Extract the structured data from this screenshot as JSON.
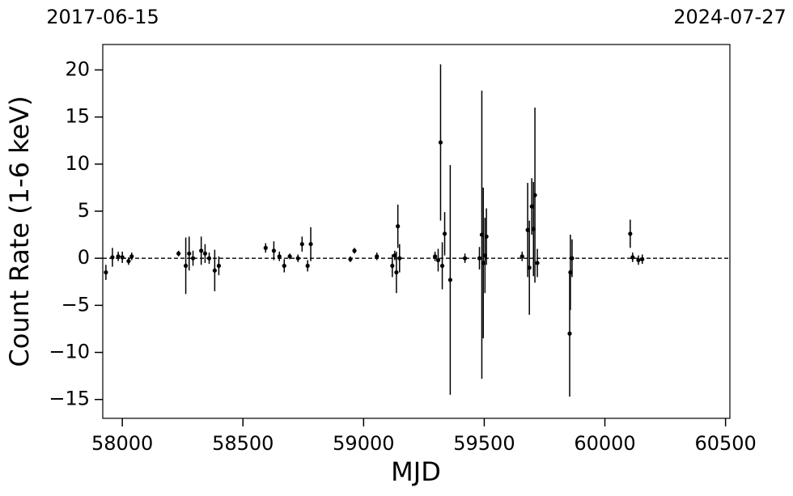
{
  "chart_data": {
    "type": "errorbar",
    "xlabel": "MJD",
    "ylabel": "Count Rate (1-6 keV)",
    "xlim": [
      57919,
      60518
    ],
    "ylim": [
      -17,
      22.7
    ],
    "xticks": [
      58000,
      58500,
      59000,
      59500,
      60000,
      60500
    ],
    "yticks": [
      {
        "value": -15,
        "label": "−15"
      },
      {
        "value": -10,
        "label": "−10"
      },
      {
        "value": -5,
        "label": "−5"
      },
      0,
      5,
      10,
      15,
      20
    ],
    "top_ticks": [
      {
        "value": 57919,
        "label": "2017-06-15"
      },
      {
        "value": 60518,
        "label": "2024-07-27"
      }
    ],
    "hline": 0,
    "color": "#000000",
    "x": [
      57932,
      57959,
      57983,
      58000,
      58026,
      58039,
      58233,
      58263,
      58277,
      58293,
      58327,
      58343,
      58360,
      58383,
      58400,
      58594,
      58628,
      58651,
      58671,
      58694,
      58728,
      58745,
      58768,
      58781,
      58945,
      58962,
      59055,
      59119,
      59129,
      59136,
      59142,
      59149,
      59296,
      59309,
      59319,
      59326,
      59336,
      59359,
      59420,
      59480,
      59490,
      59496,
      59503,
      59509,
      59657,
      59680,
      59687,
      59697,
      59704,
      59710,
      59720,
      59854,
      59857,
      59864,
      60105,
      60115,
      60139,
      60155
    ],
    "values": [
      -1.5,
      0.1,
      0.2,
      0.1,
      -0.3,
      0.2,
      0.5,
      -0.8,
      0.5,
      0.0,
      0.8,
      0.5,
      0.0,
      -1.3,
      -0.8,
      1.1,
      0.8,
      0.2,
      -0.8,
      0.2,
      0.0,
      1.5,
      -0.8,
      1.5,
      -0.1,
      0.8,
      0.2,
      -0.8,
      0.3,
      -1.5,
      3.4,
      0.0,
      0.2,
      -0.2,
      12.3,
      -0.8,
      2.6,
      -2.3,
      0.0,
      0.0,
      2.5,
      -0.5,
      0.3,
      2.3,
      0.2,
      3.0,
      -1.0,
      5.5,
      3.1,
      6.7,
      -0.5,
      -8.0,
      -1.5,
      0.0,
      2.6,
      0.1,
      -0.2,
      -0.1
    ],
    "errors": [
      0.8,
      1.0,
      0.5,
      0.6,
      0.4,
      0.4,
      0.3,
      3.0,
      1.8,
      0.8,
      1.5,
      1.0,
      0.6,
      2.2,
      1.0,
      0.5,
      1.0,
      0.5,
      0.7,
      0.3,
      0.4,
      0.8,
      0.6,
      1.8,
      0.3,
      0.3,
      0.4,
      1.2,
      0.5,
      2.2,
      2.3,
      1.5,
      0.5,
      1.2,
      8.3,
      2.5,
      2.3,
      12.2,
      0.5,
      1.2,
      15.3,
      8.0,
      4.0,
      3.0,
      0.5,
      5.0,
      5.0,
      3.0,
      5.0,
      9.3,
      1.5,
      6.7,
      4.0,
      2.0,
      1.5,
      0.5,
      0.5,
      0.5
    ]
  }
}
